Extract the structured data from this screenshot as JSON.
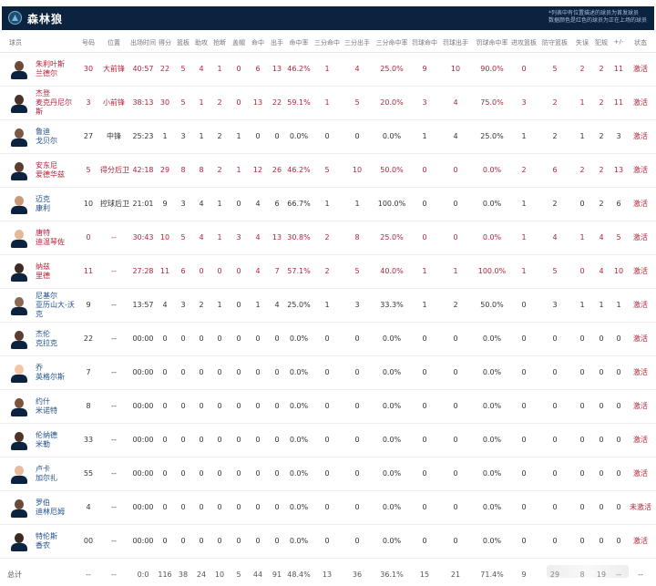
{
  "header": {
    "team_name": "森林狼",
    "note_line1": "*列表中有位置描述的球员为首发球员",
    "note_line2": "数据颜色是红色的球员为正在上场的球员"
  },
  "columns": [
    "球员",
    "号码",
    "位置",
    "出场时间",
    "得分",
    "篮板",
    "助攻",
    "抢断",
    "盖帽",
    "命中",
    "出手",
    "命中率",
    "三分命中",
    "三分出手",
    "三分命中率",
    "罚球命中",
    "罚球出手",
    "罚球命中率",
    "进攻篮板",
    "防守篮板",
    "失误",
    "犯规",
    "+/-",
    "状态"
  ],
  "players": [
    {
      "name1": "朱利叶斯",
      "name2": "兰德尔",
      "name3": "",
      "num": "30",
      "pos": "大前锋",
      "min": "40:57",
      "pts": "22",
      "reb": "5",
      "ast": "4",
      "stl": "1",
      "blk": "0",
      "fgm": "6",
      "fga": "13",
      "fgp": "46.2%",
      "tpm": "1",
      "tpa": "4",
      "tpp": "25.0%",
      "ftm": "9",
      "fta": "10",
      "ftp": "90.0%",
      "oreb": "0",
      "dreb": "5",
      "to": "2",
      "pf": "2",
      "pm": "11",
      "status": "激活",
      "on_court": true
    },
    {
      "name1": "杰登",
      "name2": "麦克丹尼尔",
      "name3": "斯",
      "num": "3",
      "pos": "小前锋",
      "min": "38:13",
      "pts": "30",
      "reb": "5",
      "ast": "1",
      "stl": "2",
      "blk": "0",
      "fgm": "13",
      "fga": "22",
      "fgp": "59.1%",
      "tpm": "1",
      "tpa": "5",
      "tpp": "20.0%",
      "ftm": "3",
      "fta": "4",
      "ftp": "75.0%",
      "oreb": "3",
      "dreb": "2",
      "to": "1",
      "pf": "2",
      "pm": "11",
      "status": "激活",
      "on_court": true
    },
    {
      "name1": "鲁迪",
      "name2": "戈贝尔",
      "name3": "",
      "num": "27",
      "pos": "中锋",
      "min": "25:23",
      "pts": "1",
      "reb": "3",
      "ast": "1",
      "stl": "2",
      "blk": "1",
      "fgm": "0",
      "fga": "0",
      "fgp": "0.0%",
      "tpm": "0",
      "tpa": "0",
      "tpp": "0.0%",
      "ftm": "1",
      "fta": "4",
      "ftp": "25.0%",
      "oreb": "1",
      "dreb": "2",
      "to": "1",
      "pf": "2",
      "pm": "3",
      "status": "激活",
      "on_court": false
    },
    {
      "name1": "安东尼",
      "name2": "爱德华兹",
      "name3": "",
      "num": "5",
      "pos": "得分后卫",
      "min": "42:18",
      "pts": "29",
      "reb": "8",
      "ast": "8",
      "stl": "2",
      "blk": "1",
      "fgm": "12",
      "fga": "26",
      "fgp": "46.2%",
      "tpm": "5",
      "tpa": "10",
      "tpp": "50.0%",
      "ftm": "0",
      "fta": "0",
      "ftp": "0.0%",
      "oreb": "2",
      "dreb": "6",
      "to": "2",
      "pf": "2",
      "pm": "13",
      "status": "激活",
      "on_court": true
    },
    {
      "name1": "迈克",
      "name2": "康利",
      "name3": "",
      "num": "10",
      "pos": "控球后卫",
      "min": "21:01",
      "pts": "9",
      "reb": "3",
      "ast": "4",
      "stl": "1",
      "blk": "0",
      "fgm": "4",
      "fga": "6",
      "fgp": "66.7%",
      "tpm": "1",
      "tpa": "1",
      "tpp": "100.0%",
      "ftm": "0",
      "fta": "0",
      "ftp": "0.0%",
      "oreb": "1",
      "dreb": "2",
      "to": "0",
      "pf": "2",
      "pm": "6",
      "status": "激活",
      "on_court": false
    },
    {
      "name1": "唐特",
      "name2": "迪温琴佐",
      "name3": "",
      "num": "0",
      "pos": "--",
      "min": "30:43",
      "pts": "10",
      "reb": "5",
      "ast": "4",
      "stl": "1",
      "blk": "3",
      "fgm": "4",
      "fga": "13",
      "fgp": "30.8%",
      "tpm": "2",
      "tpa": "8",
      "tpp": "25.0%",
      "ftm": "0",
      "fta": "0",
      "ftp": "0.0%",
      "oreb": "1",
      "dreb": "4",
      "to": "1",
      "pf": "4",
      "pm": "5",
      "status": "激活",
      "on_court": true
    },
    {
      "name1": "纳兹",
      "name2": "里德",
      "name3": "",
      "num": "11",
      "pos": "--",
      "min": "27:28",
      "pts": "11",
      "reb": "6",
      "ast": "0",
      "stl": "0",
      "blk": "0",
      "fgm": "4",
      "fga": "7",
      "fgp": "57.1%",
      "tpm": "2",
      "tpa": "5",
      "tpp": "40.0%",
      "ftm": "1",
      "fta": "1",
      "ftp": "100.0%",
      "oreb": "1",
      "dreb": "5",
      "to": "0",
      "pf": "4",
      "pm": "10",
      "status": "激活",
      "on_court": true
    },
    {
      "name1": "尼基尔",
      "name2": "亚历山大-沃",
      "name3": "克",
      "num": "9",
      "pos": "--",
      "min": "13:57",
      "pts": "4",
      "reb": "3",
      "ast": "2",
      "stl": "1",
      "blk": "0",
      "fgm": "1",
      "fga": "4",
      "fgp": "25.0%",
      "tpm": "1",
      "tpa": "3",
      "tpp": "33.3%",
      "ftm": "1",
      "fta": "2",
      "ftp": "50.0%",
      "oreb": "0",
      "dreb": "3",
      "to": "1",
      "pf": "1",
      "pm": "1",
      "status": "激活",
      "on_court": false
    },
    {
      "name1": "杰伦",
      "name2": "克拉克",
      "name3": "",
      "num": "22",
      "pos": "--",
      "min": "00:00",
      "pts": "0",
      "reb": "0",
      "ast": "0",
      "stl": "0",
      "blk": "0",
      "fgm": "0",
      "fga": "0",
      "fgp": "0.0%",
      "tpm": "0",
      "tpa": "0",
      "tpp": "0.0%",
      "ftm": "0",
      "fta": "0",
      "ftp": "0.0%",
      "oreb": "0",
      "dreb": "0",
      "to": "0",
      "pf": "0",
      "pm": "0",
      "status": "激活",
      "on_court": false
    },
    {
      "name1": "乔",
      "name2": "英格尔斯",
      "name3": "",
      "num": "7",
      "pos": "--",
      "min": "00:00",
      "pts": "0",
      "reb": "0",
      "ast": "0",
      "stl": "0",
      "blk": "0",
      "fgm": "0",
      "fga": "0",
      "fgp": "0.0%",
      "tpm": "0",
      "tpa": "0",
      "tpp": "0.0%",
      "ftm": "0",
      "fta": "0",
      "ftp": "0.0%",
      "oreb": "0",
      "dreb": "0",
      "to": "0",
      "pf": "0",
      "pm": "0",
      "status": "激活",
      "on_court": false
    },
    {
      "name1": "约什",
      "name2": "米诺特",
      "name3": "",
      "num": "8",
      "pos": "--",
      "min": "00:00",
      "pts": "0",
      "reb": "0",
      "ast": "0",
      "stl": "0",
      "blk": "0",
      "fgm": "0",
      "fga": "0",
      "fgp": "0.0%",
      "tpm": "0",
      "tpa": "0",
      "tpp": "0.0%",
      "ftm": "0",
      "fta": "0",
      "ftp": "0.0%",
      "oreb": "0",
      "dreb": "0",
      "to": "0",
      "pf": "0",
      "pm": "0",
      "status": "激活",
      "on_court": false
    },
    {
      "name1": "伦纳德",
      "name2": "米勒",
      "name3": "",
      "num": "33",
      "pos": "--",
      "min": "00:00",
      "pts": "0",
      "reb": "0",
      "ast": "0",
      "stl": "0",
      "blk": "0",
      "fgm": "0",
      "fga": "0",
      "fgp": "0.0%",
      "tpm": "0",
      "tpa": "0",
      "tpp": "0.0%",
      "ftm": "0",
      "fta": "0",
      "ftp": "0.0%",
      "oreb": "0",
      "dreb": "0",
      "to": "0",
      "pf": "0",
      "pm": "0",
      "status": "激活",
      "on_court": false
    },
    {
      "name1": "卢卡",
      "name2": "加尔扎",
      "name3": "",
      "num": "55",
      "pos": "--",
      "min": "00:00",
      "pts": "0",
      "reb": "0",
      "ast": "0",
      "stl": "0",
      "blk": "0",
      "fgm": "0",
      "fga": "0",
      "fgp": "0.0%",
      "tpm": "0",
      "tpa": "0",
      "tpp": "0.0%",
      "ftm": "0",
      "fta": "0",
      "ftp": "0.0%",
      "oreb": "0",
      "dreb": "0",
      "to": "0",
      "pf": "0",
      "pm": "0",
      "status": "激活",
      "on_court": false
    },
    {
      "name1": "罗伯",
      "name2": "迪林厄姆",
      "name3": "",
      "num": "4",
      "pos": "--",
      "min": "00:00",
      "pts": "0",
      "reb": "0",
      "ast": "0",
      "stl": "0",
      "blk": "0",
      "fgm": "0",
      "fga": "0",
      "fgp": "0.0%",
      "tpm": "0",
      "tpa": "0",
      "tpp": "0.0%",
      "ftm": "0",
      "fta": "0",
      "ftp": "0.0%",
      "oreb": "0",
      "dreb": "0",
      "to": "0",
      "pf": "0",
      "pm": "0",
      "status": "未激活",
      "on_court": false
    },
    {
      "name1": "特伦斯",
      "name2": "香农",
      "name3": "",
      "num": "00",
      "pos": "--",
      "min": "00:00",
      "pts": "0",
      "reb": "0",
      "ast": "0",
      "stl": "0",
      "blk": "0",
      "fgm": "0",
      "fga": "0",
      "fgp": "0.0%",
      "tpm": "0",
      "tpa": "0",
      "tpp": "0.0%",
      "ftm": "0",
      "fta": "0",
      "ftp": "0.0%",
      "oreb": "0",
      "dreb": "0",
      "to": "0",
      "pf": "0",
      "pm": "0",
      "status": "激活",
      "on_court": false
    }
  ],
  "totals": {
    "label": "总计",
    "num": "--",
    "pos": "--",
    "min": "0:0",
    "pts": "116",
    "reb": "38",
    "ast": "24",
    "stl": "10",
    "blk": "5",
    "fgm": "44",
    "fga": "91",
    "fgp": "48.4%",
    "tpm": "13",
    "tpa": "36",
    "tpp": "36.1%",
    "ftm": "15",
    "fta": "21",
    "ftp": "71.4%",
    "oreb": "9",
    "dreb": "29",
    "to": "8",
    "pf": "19",
    "pm": "--",
    "status": "--"
  },
  "colors": {
    "header_bg": "#0c2340",
    "on_court": "#b2243b",
    "name_default": "#1f4e8c"
  }
}
